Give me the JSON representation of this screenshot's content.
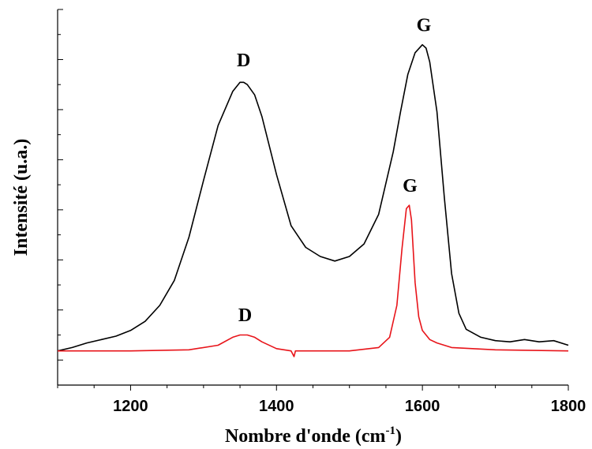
{
  "chart_data": {
    "type": "line",
    "xlabel": "Nombre d'onde (cm",
    "xlabel_sup": "-1",
    "xlabel_close": ")",
    "ylabel": "Intensité (u.a.)",
    "xlim": [
      1100,
      1800
    ],
    "ylim": [
      -3,
      30
    ],
    "xticks": [
      1200,
      1400,
      1600,
      1800
    ],
    "y_tick_count": 16,
    "grid": false,
    "legend": "none",
    "series": [
      {
        "color": "#000000",
        "x": [
          1100,
          1120,
          1140,
          1160,
          1180,
          1200,
          1220,
          1240,
          1260,
          1280,
          1300,
          1320,
          1340,
          1350,
          1355,
          1360,
          1370,
          1380,
          1400,
          1420,
          1440,
          1460,
          1480,
          1500,
          1520,
          1540,
          1560,
          1570,
          1580,
          1590,
          1600,
          1605,
          1610,
          1620,
          1630,
          1640,
          1650,
          1660,
          1680,
          1700,
          1720,
          1740,
          1760,
          1780,
          1800
        ],
        "y": [
          0.0,
          0.3,
          0.7,
          1.0,
          1.3,
          1.8,
          2.6,
          4.0,
          6.2,
          10.0,
          15.0,
          19.8,
          22.8,
          23.6,
          23.6,
          23.4,
          22.5,
          20.6,
          15.5,
          11.0,
          9.1,
          8.3,
          7.9,
          8.3,
          9.4,
          12.0,
          17.5,
          21.0,
          24.3,
          26.2,
          26.9,
          26.6,
          25.4,
          21.0,
          13.5,
          6.8,
          3.3,
          1.9,
          1.2,
          0.9,
          0.8,
          1.0,
          0.8,
          0.9,
          0.5
        ]
      },
      {
        "color": "#e8141a",
        "x": [
          1100,
          1200,
          1280,
          1320,
          1340,
          1350,
          1360,
          1370,
          1380,
          1400,
          1420,
          1424,
          1426,
          1428,
          1440,
          1500,
          1540,
          1555,
          1565,
          1572,
          1578,
          1582,
          1585,
          1590,
          1595,
          1600,
          1610,
          1620,
          1640,
          1700,
          1800
        ],
        "y": [
          0.0,
          0.0,
          0.1,
          0.5,
          1.2,
          1.4,
          1.4,
          1.2,
          0.8,
          0.2,
          0.0,
          -0.5,
          0.0,
          0.0,
          0.0,
          0.0,
          0.3,
          1.2,
          4.0,
          9.0,
          12.5,
          12.8,
          11.5,
          6.0,
          3.0,
          1.8,
          1.0,
          0.7,
          0.3,
          0.1,
          0.0
        ]
      }
    ],
    "annotations": [
      {
        "text": "D",
        "x": 1355,
        "y": 25.0,
        "color": "#000000"
      },
      {
        "text": "G",
        "x": 1602,
        "y": 28.1,
        "color": "#000000"
      },
      {
        "text": "D",
        "x": 1357,
        "y": 2.6,
        "color": "#000000"
      },
      {
        "text": "G",
        "x": 1583,
        "y": 14.0,
        "color": "#000000"
      }
    ]
  }
}
